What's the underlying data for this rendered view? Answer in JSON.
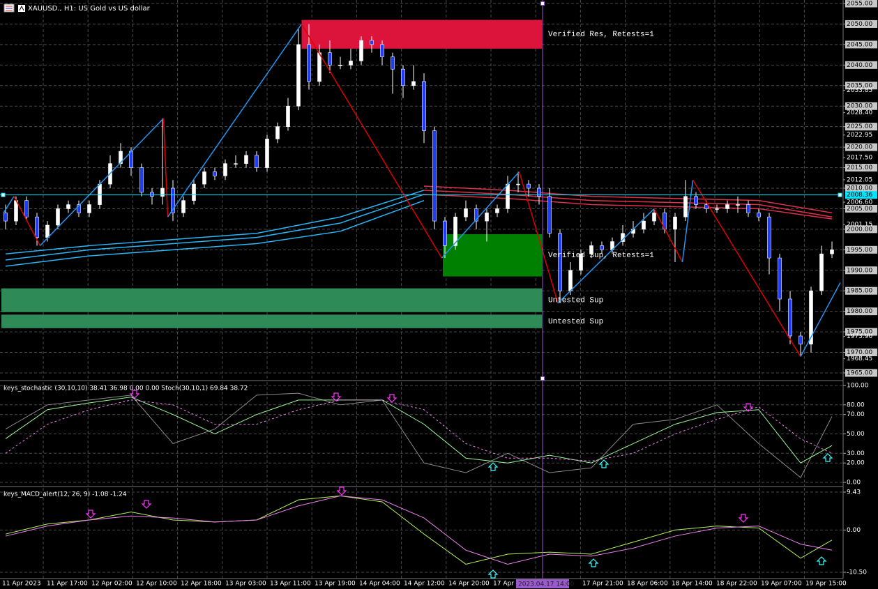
{
  "header": {
    "title": "XAUUSD., H1: US Gold vs US dollar"
  },
  "chart_data": [
    {
      "type": "candlestick",
      "title": "XAUUSD., H1: US Gold vs US dollar",
      "ylim": [
        1963.3,
        2055.85
      ],
      "yticks": [
        {
          "value": 2055,
          "label": "2055.00"
        },
        {
          "value": 2050,
          "label": "2050.00"
        },
        {
          "value": 2045,
          "label": "2045.00"
        },
        {
          "value": 2040,
          "label": "2040.00"
        },
        {
          "value": 2035,
          "label": "2035.00"
        },
        {
          "value": 2030,
          "label": "2030.00"
        },
        {
          "value": 2025,
          "label": "2025.00"
        },
        {
          "value": 2020,
          "label": "2020.00"
        },
        {
          "value": 2015,
          "label": "2015.00"
        },
        {
          "value": 2010,
          "label": "2010.00"
        },
        {
          "value": 2005,
          "label": "2005.00"
        },
        {
          "value": 2000,
          "label": "2000.00"
        },
        {
          "value": 1995,
          "label": "1995.00"
        },
        {
          "value": 1990,
          "label": "1990.00"
        },
        {
          "value": 1985,
          "label": "1985.00"
        },
        {
          "value": 1980,
          "label": "1980.00"
        },
        {
          "value": 1975,
          "label": "1975.00"
        },
        {
          "value": 1970,
          "label": "1970.00"
        },
        {
          "value": 1965,
          "label": "1965.00"
        }
      ],
      "yticks_minor": [
        {
          "value": 2033.85,
          "label": "2033.85"
        },
        {
          "value": 2028.4,
          "label": "2028.40"
        },
        {
          "value": 2022.95,
          "label": "2022.95"
        },
        {
          "value": 2017.5,
          "label": "2017.50"
        },
        {
          "value": 2012.05,
          "label": "2012.05"
        },
        {
          "value": 2006.6,
          "label": "2006.60"
        },
        {
          "value": 2001.15,
          "label": "2001.15"
        },
        {
          "value": 1973.9,
          "label": "1973.90"
        },
        {
          "value": 1968.45,
          "label": "1968.45"
        }
      ],
      "last_price": 2008.36,
      "last_price_color": "#00e5ff",
      "up_color": "#ffffff",
      "down_color": "#1e3cff",
      "candles": [
        [
          2004,
          2006,
          2000,
          2002
        ],
        [
          2002,
          2008,
          2001,
          2007
        ],
        [
          2007,
          2008,
          2002,
          2003
        ],
        [
          2003,
          2004,
          1996,
          1998
        ],
        [
          1998,
          2002,
          1997,
          2001
        ],
        [
          2001,
          2006,
          2000,
          2005
        ],
        [
          2005,
          2007,
          2004,
          2006
        ],
        [
          2006,
          2007,
          2003,
          2004
        ],
        [
          2004,
          2007,
          2003,
          2006
        ],
        [
          2006,
          2012,
          2005,
          2011
        ],
        [
          2011,
          2018,
          2010,
          2016
        ],
        [
          2016,
          2021,
          2015,
          2019
        ],
        [
          2019,
          2020,
          2013,
          2015
        ],
        [
          2015,
          2016,
          2008,
          2009
        ],
        [
          2009,
          2010,
          2006,
          2008
        ],
        [
          2008,
          2027,
          2006,
          2010
        ],
        [
          2010,
          2012,
          2002,
          2004
        ],
        [
          2004,
          2008,
          2003,
          2007
        ],
        [
          2007,
          2012,
          2006,
          2011
        ],
        [
          2011,
          2015,
          2010,
          2014
        ],
        [
          2014,
          2015,
          2012,
          2013
        ],
        [
          2013,
          2017,
          2012,
          2016
        ],
        [
          2016,
          2018,
          2015,
          2016
        ],
        [
          2016,
          2019,
          2015,
          2018
        ],
        [
          2018,
          2019,
          2014,
          2015
        ],
        [
          2015,
          2023,
          2014,
          2022
        ],
        [
          2022,
          2026,
          2021,
          2025
        ],
        [
          2025,
          2032,
          2024,
          2030
        ],
        [
          2030,
          2049,
          2029,
          2045
        ],
        [
          2045,
          2050,
          2034,
          2036
        ],
        [
          2036,
          2045,
          2035,
          2043
        ],
        [
          2043,
          2046,
          2038,
          2040
        ],
        [
          2040,
          2042,
          2039,
          2040
        ],
        [
          2040,
          2044,
          2039,
          2041
        ],
        [
          2041,
          2047,
          2040,
          2046
        ],
        [
          2046,
          2047,
          2043,
          2045
        ],
        [
          2045,
          2046,
          2040,
          2042
        ],
        [
          2042,
          2043,
          2033,
          2039
        ],
        [
          2039,
          2040,
          2032,
          2035
        ],
        [
          2035,
          2040,
          2034,
          2036
        ],
        [
          2036,
          2038,
          2021,
          2024
        ],
        [
          2024,
          2025,
          2000,
          2002
        ],
        [
          2002,
          2003,
          1993,
          1996
        ],
        [
          1996,
          2004,
          1995,
          2003
        ],
        [
          2003,
          2007,
          2002,
          2005
        ],
        [
          2005,
          2006,
          2000,
          2002
        ],
        [
          2002,
          2005,
          1997,
          2004
        ],
        [
          2004,
          2006,
          2003,
          2005
        ],
        [
          2005,
          2013,
          2004,
          2011
        ],
        [
          2011,
          2014,
          2009,
          2011
        ],
        [
          2011,
          2012,
          2008,
          2010
        ],
        [
          2010,
          2011,
          2006,
          2008
        ],
        [
          2008,
          2010,
          1998,
          1999
        ],
        [
          1999,
          2000,
          1982,
          1985
        ],
        [
          1985,
          1992,
          1984,
          1990
        ],
        [
          1990,
          1995,
          1989,
          1994
        ],
        [
          1994,
          1997,
          1993,
          1996
        ],
        [
          1996,
          1997,
          1994,
          1995
        ],
        [
          1995,
          1998,
          1994,
          1997
        ],
        [
          1997,
          2001,
          1996,
          1999
        ],
        [
          1999,
          2002,
          1998,
          2000
        ],
        [
          2000,
          2004,
          1999,
          2002
        ],
        [
          2002,
          2005,
          2001,
          2004
        ],
        [
          2004,
          2005,
          1999,
          2000
        ],
        [
          2000,
          2004,
          1992,
          2003
        ],
        [
          2003,
          2012,
          2002,
          2008
        ],
        [
          2008,
          2009,
          2005,
          2006
        ],
        [
          2006,
          2007,
          2004,
          2005
        ],
        [
          2005,
          2006,
          2004,
          2005
        ],
        [
          2005,
          2007,
          2004,
          2006
        ],
        [
          2006,
          2008,
          2004,
          2006
        ],
        [
          2006,
          2007,
          2003,
          2004
        ],
        [
          2004,
          2005,
          2002,
          2003
        ],
        [
          2003,
          2004,
          1989,
          1993
        ],
        [
          1993,
          1994,
          1980,
          1983
        ],
        [
          1983,
          1985,
          1972,
          1974
        ],
        [
          1974,
          1975,
          1969,
          1972
        ],
        [
          1972,
          1986,
          1970,
          1985
        ],
        [
          1985,
          1996,
          1984,
          1994
        ],
        [
          1994,
          1997,
          1993,
          1995
        ]
      ],
      "ma": {
        "x": [
          0,
          8,
          16,
          24,
          32,
          40,
          48,
          56,
          64,
          72,
          79
        ],
        "series": [
          {
            "color": "#29b6f6",
            "values": [
              1994,
              1996,
              1997.5,
              1999,
              2003,
              2009.5,
              null,
              null,
              null,
              null,
              null
            ]
          },
          {
            "color": "#29b6f6",
            "values": [
              1992.5,
              1995,
              1996.5,
              1998,
              2001.5,
              2008.5,
              null,
              null,
              null,
              null,
              null
            ]
          },
          {
            "color": "#29b6f6",
            "values": [
              1991,
              1993.5,
              1995,
              1996.5,
              1999.5,
              2007,
              null,
              null,
              null,
              null,
              null
            ]
          },
          {
            "color": "#e0304a",
            "values": [
              null,
              null,
              null,
              null,
              null,
              2010.5,
              2009.5,
              2008,
              2007.5,
              2007,
              2004
            ]
          },
          {
            "color": "#e0304a",
            "values": [
              null,
              null,
              null,
              null,
              null,
              2009.5,
              2008.5,
              2007,
              2006.5,
              2006,
              2003
            ]
          },
          {
            "color": "#e0304a",
            "values": [
              null,
              null,
              null,
              null,
              null,
              2008.5,
              2007.5,
              2006,
              2005.5,
              2005,
              2002.5
            ]
          }
        ]
      },
      "zigzag": {
        "up_color": "#2196f3",
        "down_color": "#e00000",
        "x": [
          -0.2,
          0.8,
          3.3,
          15.1,
          15.5,
          28.3,
          41.7,
          49.1,
          52.8,
          62,
          64.7,
          65.7,
          76,
          79.8
        ],
        "values": [
          2004,
          2008,
          1996,
          2027,
          2003,
          2050,
          1993,
          2014,
          1982,
          2005,
          1992,
          2012,
          1969,
          1987
        ]
      },
      "zones": [
        {
          "label": "Verified Res, Retests=1",
          "from": 2044,
          "to": 2051,
          "start": 28.3,
          "color": "#dc143c"
        },
        {
          "label": "Verified Sup, Retests=1",
          "from": 1988.5,
          "to": 1998.8,
          "start": 41.8,
          "color": "#008000"
        },
        {
          "label": "Untested Sup",
          "from": 1979.8,
          "to": 1985.6,
          "start": -0.4,
          "color": "#2e8b57"
        },
        {
          "label": "Untested Sup",
          "from": 1975.9,
          "to": 1979.2,
          "start": -0.4,
          "color": "#2e8b57"
        }
      ]
    },
    {
      "type": "line",
      "title": "keys_stochastic (30,10,10) 38.41 36.98 0.00 0.00 Stoch(30,10,1) 69.84 38.72",
      "ylim": [
        -3.6,
        103.6
      ],
      "yticks": [
        {
          "value": 100,
          "label": "100.00"
        },
        {
          "value": 80,
          "label": "80.00"
        },
        {
          "value": 70,
          "label": "70.00"
        },
        {
          "value": 50,
          "label": "50.00"
        },
        {
          "value": 30,
          "label": "30.00"
        },
        {
          "value": 20,
          "label": "20.00"
        },
        {
          "value": 0,
          "label": "0.00"
        }
      ],
      "x": [
        0,
        4,
        8,
        12,
        16,
        20,
        24,
        28,
        32,
        36,
        40,
        44,
        48,
        52,
        56,
        60,
        64,
        68,
        72,
        76,
        79
      ],
      "series": [
        {
          "color": "#8a8a8a",
          "style": "solid",
          "values": [
            55,
            80,
            85,
            90,
            40,
            55,
            90,
            92,
            80,
            85,
            20,
            10,
            30,
            10,
            15,
            60,
            65,
            80,
            40,
            5,
            68
          ]
        },
        {
          "color": "#98fb98",
          "style": "solid",
          "values": [
            45,
            75,
            82,
            88,
            70,
            50,
            70,
            85,
            85,
            85,
            60,
            25,
            20,
            28,
            20,
            40,
            60,
            72,
            75,
            20,
            38
          ]
        },
        {
          "color": "#ee82ee",
          "style": "dashed",
          "values": [
            30,
            60,
            75,
            85,
            80,
            60,
            60,
            75,
            85,
            85,
            75,
            40,
            25,
            25,
            22,
            30,
            50,
            65,
            78,
            45,
            30
          ]
        }
      ]
    },
    {
      "type": "line",
      "title": "keys_MACD_alert(12, 26, 9) -1.08 -1.24",
      "ylim": [
        -12.06,
        10.47
      ],
      "yticks": [
        {
          "value": 9.43,
          "label": "9.43"
        },
        {
          "value": 0,
          "label": "0.00"
        },
        {
          "value": -10.5,
          "label": "-10.50"
        }
      ],
      "x": [
        0,
        4,
        8,
        12,
        16,
        20,
        24,
        28,
        32,
        36,
        40,
        44,
        48,
        52,
        56,
        60,
        64,
        68,
        72,
        76,
        79
      ],
      "series": [
        {
          "color": "#b4f05a",
          "style": "solid",
          "values": [
            -1,
            1.5,
            2.5,
            4.5,
            2.5,
            2,
            2.5,
            7.5,
            8.5,
            7,
            -1,
            -8.5,
            -6,
            -5.5,
            -6,
            -3,
            0,
            1,
            0.5,
            -7,
            -2.5
          ]
        },
        {
          "color": "#ee82ee",
          "style": "solid",
          "values": [
            -1.5,
            1,
            2.5,
            3.5,
            3,
            2,
            2.5,
            6,
            8.5,
            7.5,
            3,
            -5,
            -8.5,
            -6,
            -6.5,
            -4.5,
            -1.5,
            0.5,
            1,
            -3.5,
            -5
          ]
        }
      ]
    }
  ],
  "time_axis": {
    "labels": [
      "11 Apr 2023",
      "11 Apr 17:00",
      "12 Apr 02:00",
      "12 Apr 10:00",
      "12 Apr 18:00",
      "13 Apr 03:00",
      "13 Apr 11:00",
      "13 Apr 19:00",
      "14 Apr 04:00",
      "14 Apr 12:00",
      "14 Apr 20:00",
      "17 Apr 0",
      "17 Apr 21:00",
      "18 Apr 06:00",
      "18 Apr 14:00",
      "18 Apr 22:00",
      "19 Apr 07:00",
      "19 Apr 15:00"
    ],
    "cursor_label": "2023.04.17 14:00"
  }
}
